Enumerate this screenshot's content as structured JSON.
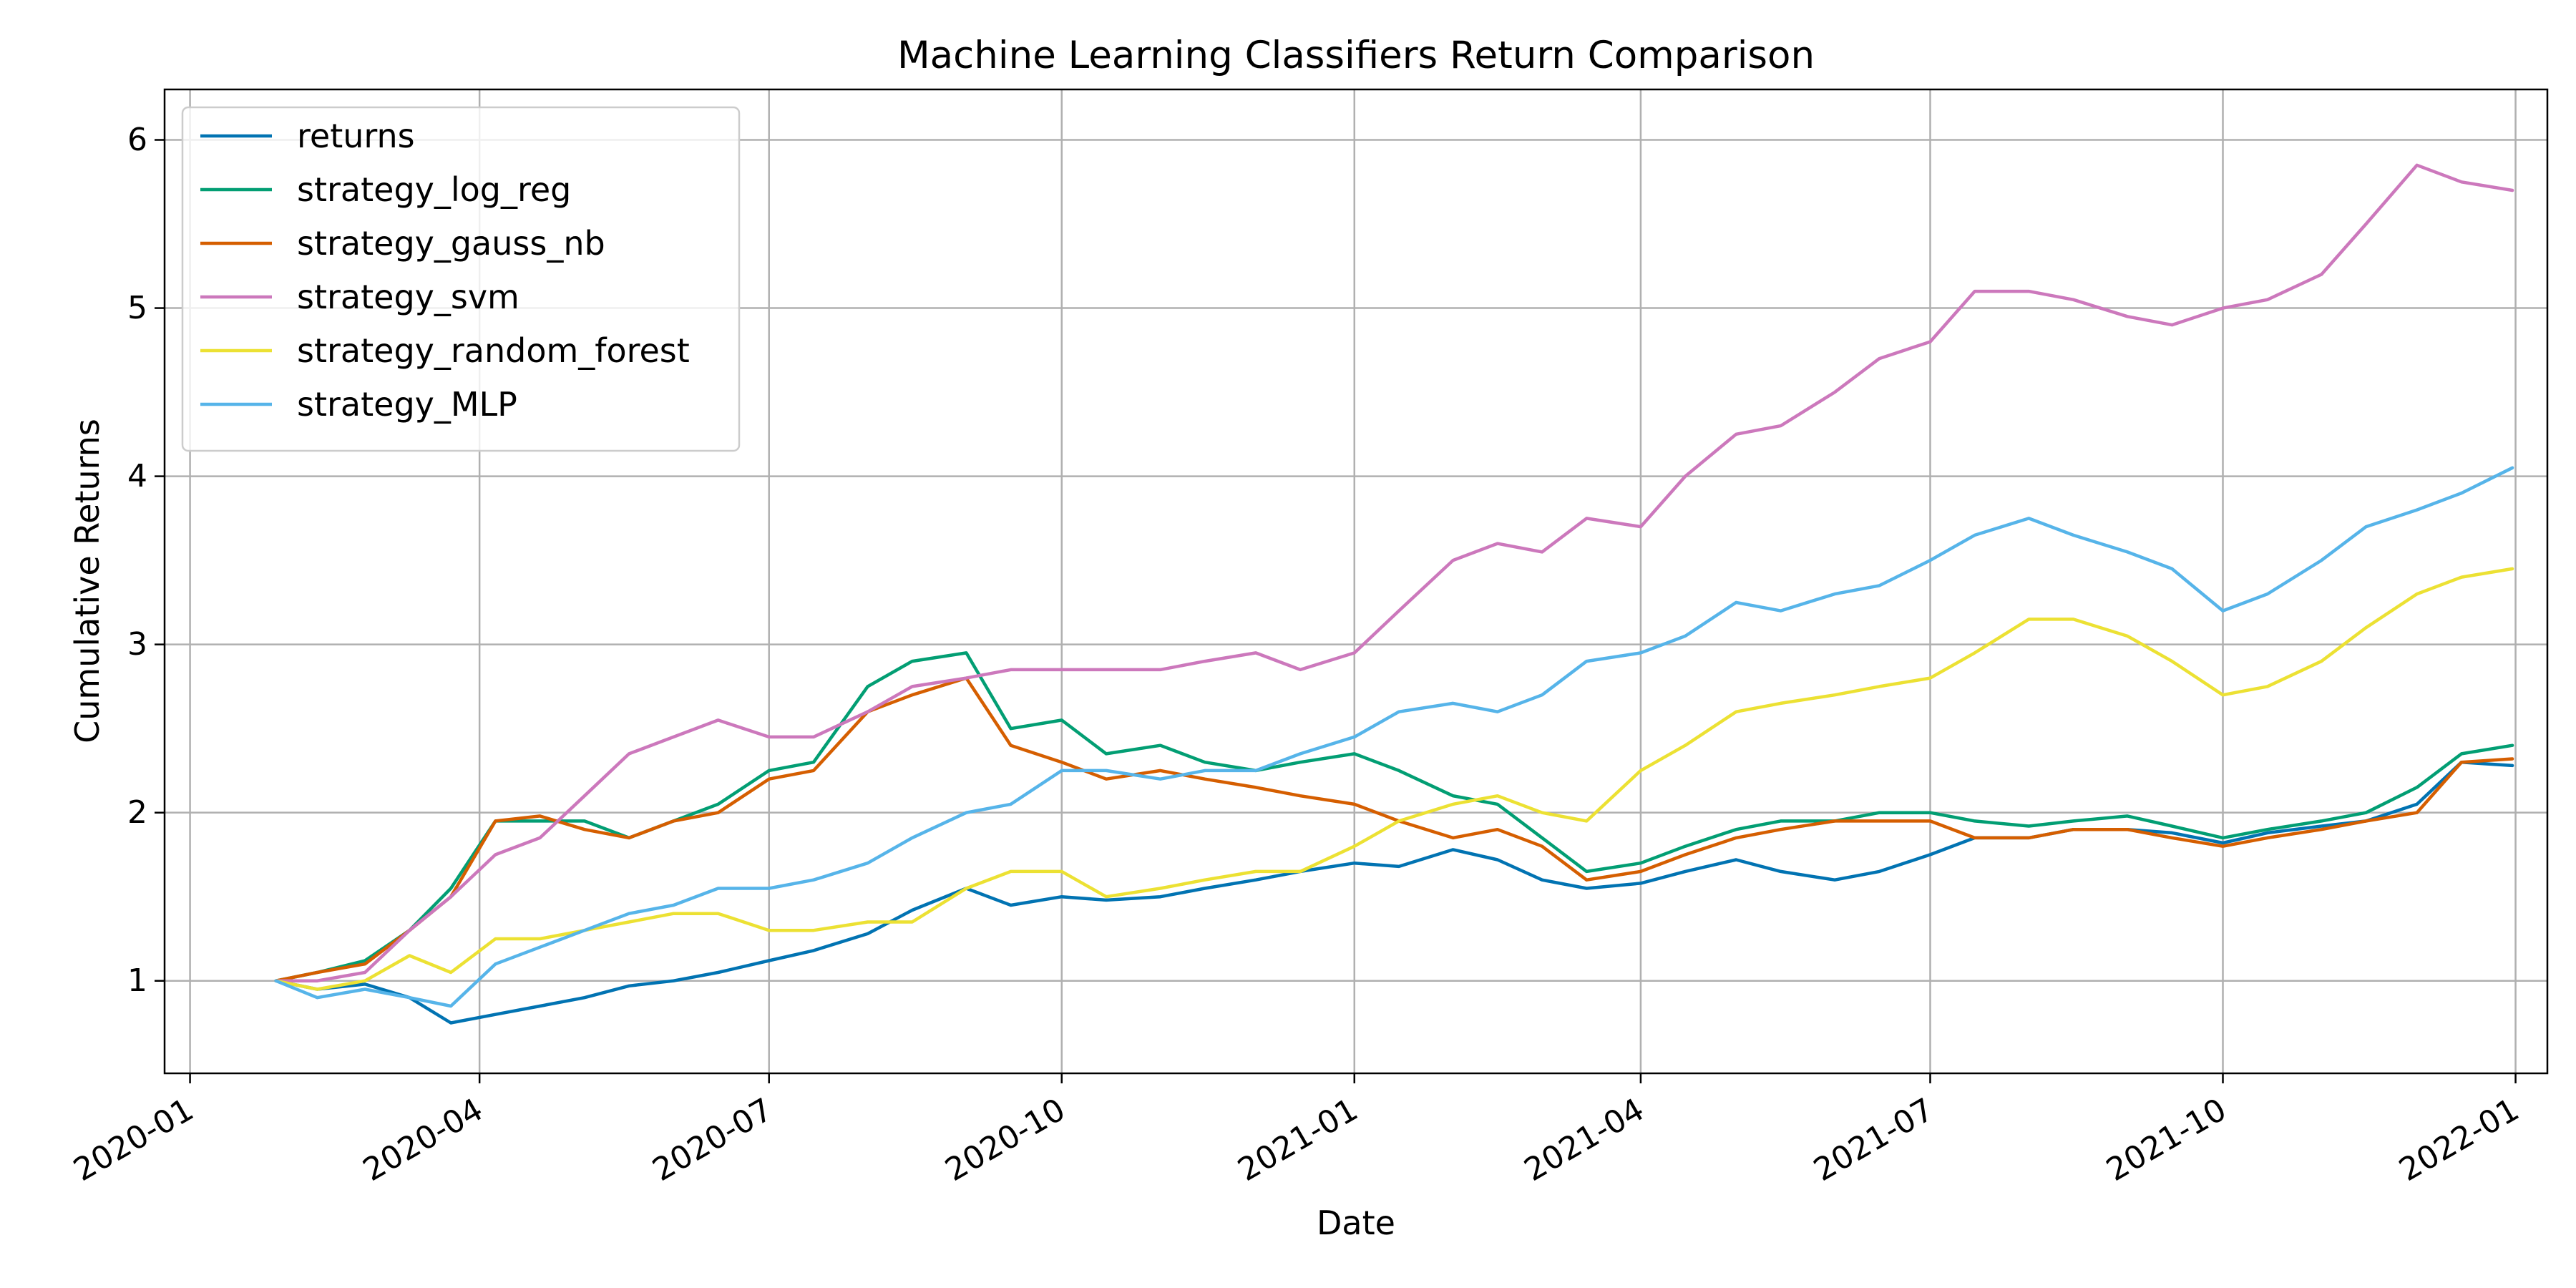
{
  "chart_data": {
    "type": "line",
    "title": "Machine Learning Classifiers Return Comparison",
    "xlabel": "Date",
    "ylabel": "Cumulative Returns",
    "xlim": [
      "2019-12-24",
      "2022-01-11"
    ],
    "ylim": [
      0.45,
      6.3
    ],
    "x_ticks": [
      "2020-01",
      "2020-04",
      "2020-07",
      "2020-10",
      "2021-01",
      "2021-04",
      "2021-07",
      "2021-10",
      "2022-01"
    ],
    "y_ticks": [
      1,
      2,
      3,
      4,
      5,
      6
    ],
    "grid": true,
    "legend": "top-left",
    "x": [
      "2020-01-28",
      "2020-02-10",
      "2020-02-25",
      "2020-03-10",
      "2020-03-23",
      "2020-04-06",
      "2020-04-20",
      "2020-05-04",
      "2020-05-18",
      "2020-06-01",
      "2020-06-15",
      "2020-07-01",
      "2020-07-15",
      "2020-08-01",
      "2020-08-15",
      "2020-09-01",
      "2020-09-15",
      "2020-10-01",
      "2020-10-15",
      "2020-11-01",
      "2020-11-15",
      "2020-12-01",
      "2020-12-15",
      "2021-01-01",
      "2021-01-15",
      "2021-02-01",
      "2021-02-15",
      "2021-03-01",
      "2021-03-15",
      "2021-04-01",
      "2021-04-15",
      "2021-05-01",
      "2021-05-15",
      "2021-06-01",
      "2021-06-15",
      "2021-07-01",
      "2021-07-15",
      "2021-08-01",
      "2021-08-15",
      "2021-09-01",
      "2021-09-15",
      "2021-10-01",
      "2021-10-15",
      "2021-11-01",
      "2021-11-15",
      "2021-12-01",
      "2021-12-15",
      "2021-12-31"
    ],
    "series": [
      {
        "name": "returns",
        "color": "#0173b2",
        "values": [
          1.0,
          0.95,
          0.98,
          0.9,
          0.75,
          0.8,
          0.85,
          0.9,
          0.97,
          1.0,
          1.05,
          1.12,
          1.18,
          1.28,
          1.42,
          1.55,
          1.45,
          1.5,
          1.48,
          1.5,
          1.55,
          1.6,
          1.65,
          1.7,
          1.68,
          1.78,
          1.72,
          1.6,
          1.55,
          1.58,
          1.65,
          1.72,
          1.65,
          1.6,
          1.65,
          1.75,
          1.85,
          1.85,
          1.9,
          1.9,
          1.88,
          1.82,
          1.88,
          1.92,
          1.95,
          2.05,
          2.3,
          2.28
        ]
      },
      {
        "name": "strategy_log_reg",
        "color": "#029e73",
        "values": [
          1.0,
          1.05,
          1.12,
          1.3,
          1.55,
          1.95,
          1.95,
          1.95,
          1.85,
          1.95,
          2.05,
          2.25,
          2.3,
          2.75,
          2.9,
          2.95,
          2.5,
          2.55,
          2.35,
          2.4,
          2.3,
          2.25,
          2.3,
          2.35,
          2.25,
          2.1,
          2.05,
          1.85,
          1.65,
          1.7,
          1.8,
          1.9,
          1.95,
          1.95,
          2.0,
          2.0,
          1.95,
          1.92,
          1.95,
          1.98,
          1.92,
          1.85,
          1.9,
          1.95,
          2.0,
          2.15,
          2.35,
          2.4
        ]
      },
      {
        "name": "strategy_gauss_nb",
        "color": "#d55e00",
        "values": [
          1.0,
          1.05,
          1.1,
          1.3,
          1.5,
          1.95,
          1.98,
          1.9,
          1.85,
          1.95,
          2.0,
          2.2,
          2.25,
          2.6,
          2.7,
          2.8,
          2.4,
          2.3,
          2.2,
          2.25,
          2.2,
          2.15,
          2.1,
          2.05,
          1.95,
          1.85,
          1.9,
          1.8,
          1.6,
          1.65,
          1.75,
          1.85,
          1.9,
          1.95,
          1.95,
          1.95,
          1.85,
          1.85,
          1.9,
          1.9,
          1.85,
          1.8,
          1.85,
          1.9,
          1.95,
          2.0,
          2.3,
          2.32
        ]
      },
      {
        "name": "strategy_svm",
        "color": "#cc78bc",
        "values": [
          1.0,
          1.0,
          1.05,
          1.3,
          1.5,
          1.75,
          1.85,
          2.1,
          2.35,
          2.45,
          2.55,
          2.45,
          2.45,
          2.6,
          2.75,
          2.8,
          2.85,
          2.85,
          2.85,
          2.85,
          2.9,
          2.95,
          2.85,
          2.95,
          3.2,
          3.5,
          3.6,
          3.55,
          3.75,
          3.7,
          4.0,
          4.25,
          4.3,
          4.5,
          4.7,
          4.8,
          5.1,
          5.1,
          5.05,
          4.95,
          4.9,
          5.0,
          5.05,
          5.2,
          5.5,
          5.85,
          5.75,
          5.7
        ]
      },
      {
        "name": "strategy_random_forest",
        "color": "#ece133",
        "values": [
          1.0,
          0.95,
          1.0,
          1.15,
          1.05,
          1.25,
          1.25,
          1.3,
          1.35,
          1.4,
          1.4,
          1.3,
          1.3,
          1.35,
          1.35,
          1.55,
          1.65,
          1.65,
          1.5,
          1.55,
          1.6,
          1.65,
          1.65,
          1.8,
          1.95,
          2.05,
          2.1,
          2.0,
          1.95,
          2.25,
          2.4,
          2.6,
          2.65,
          2.7,
          2.75,
          2.8,
          2.95,
          3.15,
          3.15,
          3.05,
          2.9,
          2.7,
          2.75,
          2.9,
          3.1,
          3.3,
          3.4,
          3.45
        ]
      },
      {
        "name": "strategy_MLP",
        "color": "#56b4e9",
        "values": [
          1.0,
          0.9,
          0.95,
          0.9,
          0.85,
          1.1,
          1.2,
          1.3,
          1.4,
          1.45,
          1.55,
          1.55,
          1.6,
          1.7,
          1.85,
          2.0,
          2.05,
          2.25,
          2.25,
          2.2,
          2.25,
          2.25,
          2.35,
          2.45,
          2.6,
          2.65,
          2.6,
          2.7,
          2.9,
          2.95,
          3.05,
          3.25,
          3.2,
          3.3,
          3.35,
          3.5,
          3.65,
          3.75,
          3.65,
          3.55,
          3.45,
          3.2,
          3.3,
          3.5,
          3.7,
          3.8,
          3.9,
          4.05
        ]
      }
    ]
  }
}
